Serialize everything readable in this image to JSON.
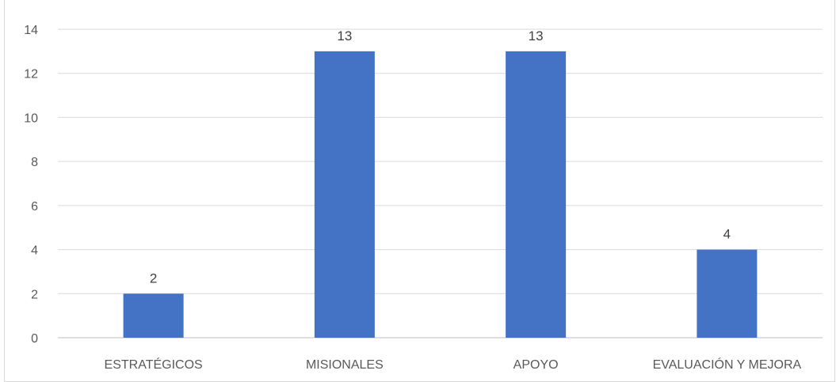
{
  "chart_data": {
    "type": "bar",
    "title": "",
    "xlabel": "",
    "ylabel": "",
    "categories": [
      "ESTRATÉGICOS",
      "MISIONALES",
      "APOYO",
      "EVALUACIÓN Y MEJORA"
    ],
    "values": [
      2,
      13,
      13,
      4
    ],
    "data_labels": [
      "2",
      "13",
      "13",
      "4"
    ],
    "ylim": [
      0,
      14
    ],
    "y_ticks": [
      0,
      2,
      4,
      6,
      8,
      10,
      12,
      14
    ],
    "grid": true,
    "legend": false,
    "bar_color": "#4472C4"
  }
}
